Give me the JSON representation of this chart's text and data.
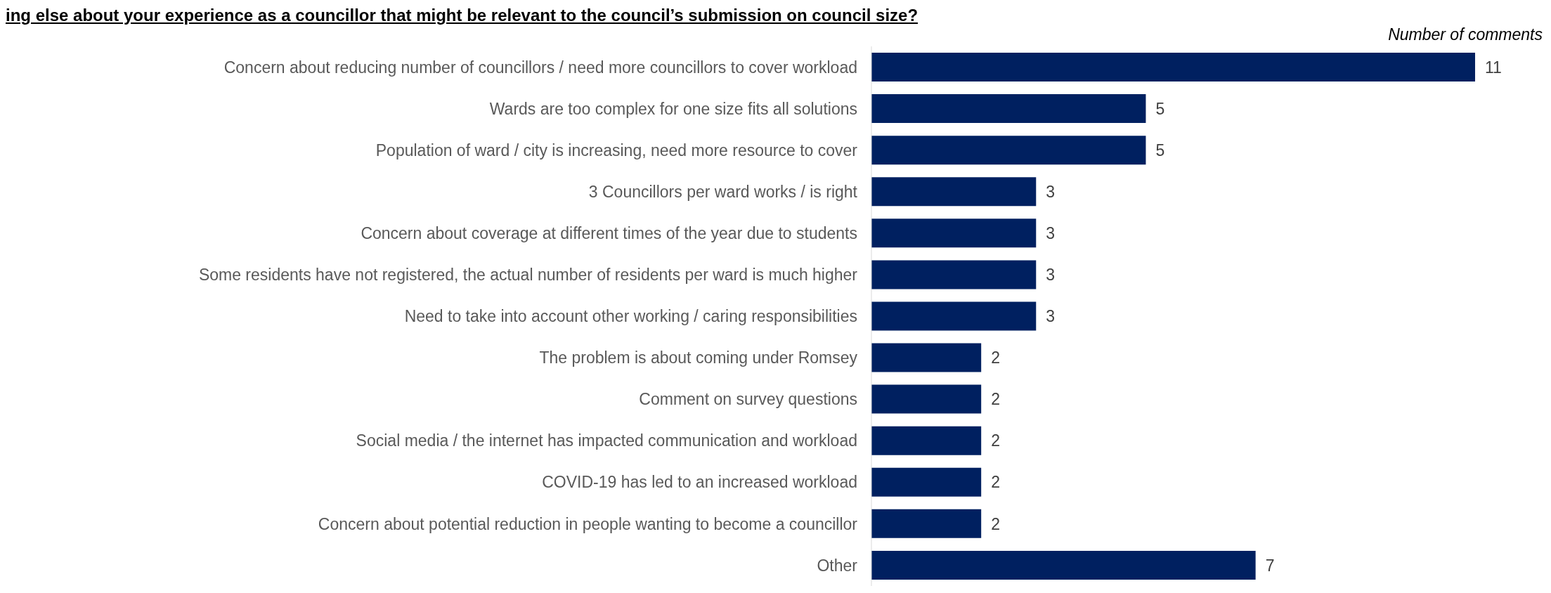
{
  "chart_data": {
    "type": "bar",
    "orientation": "horizontal",
    "title": "ing else about your experience as a councillor that might be relevant to the council’s submission on council size?",
    "xlabel": "Number of comments",
    "categories": [
      "Concern about reducing number of councillors / need more councillors to cover workload",
      "Wards are too complex for one size fits all solutions",
      "Population of ward / city is increasing, need more resource to cover",
      "3 Councillors per ward works / is right",
      "Concern about coverage at different times of the year due to students",
      "Some residents have not registered, the actual number of residents per ward is much higher",
      "Need to take into account other working / caring responsibilities",
      "The problem is about coming under Romsey",
      "Comment on survey questions",
      "Social media / the internet has impacted communication and workload",
      "COVID-19 has led to an increased workload",
      "Concern about potential reduction in people wanting to become a councillor",
      "Other"
    ],
    "values": [
      11,
      5,
      5,
      3,
      3,
      3,
      3,
      2,
      2,
      2,
      2,
      2,
      7
    ],
    "color": "#002060",
    "data_labels": true
  }
}
